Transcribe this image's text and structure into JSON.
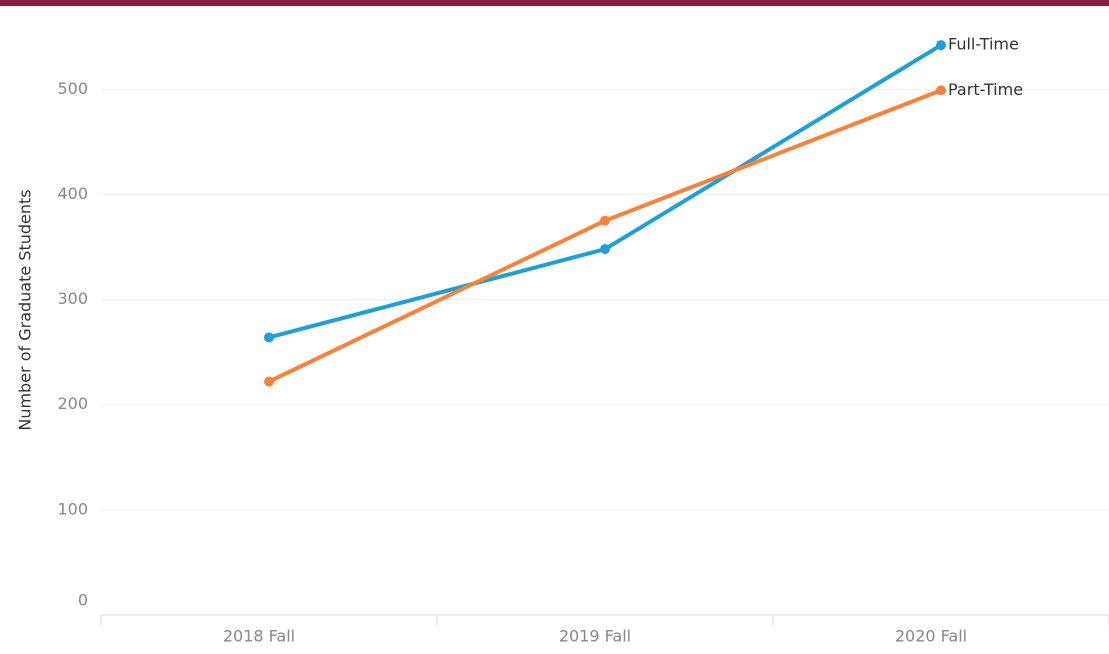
{
  "chart_data": {
    "type": "line",
    "y_label": "Number of Graduate Students",
    "categories": [
      "2018 Fall",
      "2019 Fall",
      "2020 Fall"
    ],
    "series": [
      {
        "name": "Full-Time",
        "color": "#1f9fd8",
        "values": [
          264,
          348,
          542
        ]
      },
      {
        "name": "Part-Time",
        "color": "#f7823b",
        "values": [
          222,
          375,
          499
        ]
      }
    ],
    "ylim": [
      0,
      565
    ],
    "yticks": [
      0,
      100,
      200,
      300,
      400,
      500
    ],
    "grid": true
  }
}
